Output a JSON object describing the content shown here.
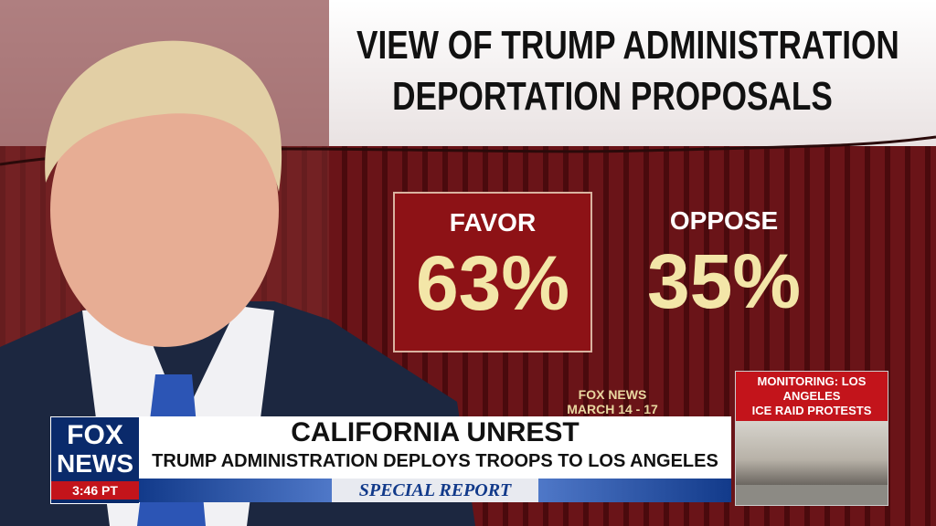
{
  "graphic": {
    "title_lines": [
      "VIEW OF TRUMP ADMINISTRATION",
      "DEPORTATION PROPOSALS"
    ],
    "results": [
      {
        "label": "FAVOR",
        "value": "63%"
      },
      {
        "label": "OPPOSE",
        "value": "35%"
      }
    ],
    "source": [
      "FOX NEWS",
      "MARCH 14 - 17"
    ]
  },
  "lower_third": {
    "logo": [
      "FOX",
      "NEWS"
    ],
    "time": "3:46 PT",
    "headline": "CALIFORNIA UNREST",
    "subhead": "TRUMP ADMINISTRATION DEPLOYS TROOPS TO LOS ANGELES",
    "banner": "SPECIAL REPORT"
  },
  "inset": {
    "caption": [
      "MONITORING: LOS ANGELES",
      "ICE RAID PROTESTS"
    ]
  }
}
